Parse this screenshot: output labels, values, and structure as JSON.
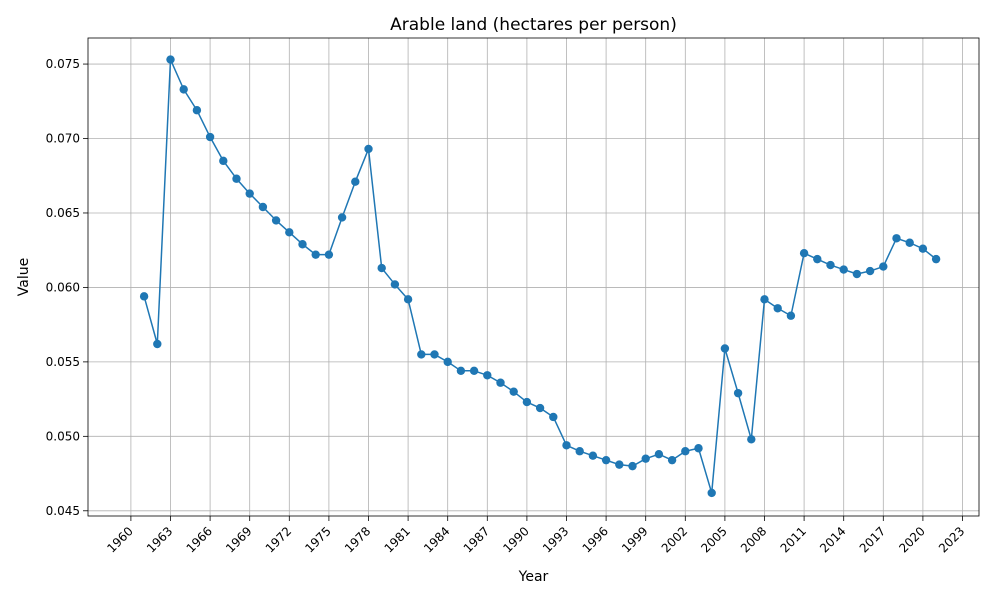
{
  "chart_data": {
    "type": "line",
    "title": "Arable land (hectares per person)",
    "xlabel": "Year",
    "ylabel": "Value",
    "xlim": [
      1956.75,
      2024.25
    ],
    "ylim": [
      0.04465,
      0.07675
    ],
    "grid": true,
    "x_ticks": [
      1960,
      1963,
      1966,
      1969,
      1972,
      1975,
      1978,
      1981,
      1984,
      1987,
      1990,
      1993,
      1996,
      1999,
      2002,
      2005,
      2008,
      2011,
      2014,
      2017,
      2020,
      2023
    ],
    "y_ticks": [
      0.045,
      0.05,
      0.055,
      0.06,
      0.065,
      0.07,
      0.075
    ],
    "y_tick_labels": [
      "0.045",
      "0.050",
      "0.055",
      "0.060",
      "0.065",
      "0.070",
      "0.075"
    ],
    "series": [
      {
        "color": "#1f77b4",
        "marker": "circle",
        "x": [
          1961,
          1962,
          1963,
          1964,
          1965,
          1966,
          1967,
          1968,
          1969,
          1970,
          1971,
          1972,
          1973,
          1974,
          1975,
          1976,
          1977,
          1978,
          1979,
          1980,
          1981,
          1982,
          1983,
          1984,
          1985,
          1986,
          1987,
          1988,
          1989,
          1990,
          1991,
          1992,
          1993,
          1994,
          1995,
          1996,
          1997,
          1998,
          1999,
          2000,
          2001,
          2002,
          2003,
          2004,
          2005,
          2006,
          2007,
          2008,
          2009,
          2010,
          2011,
          2012,
          2013,
          2014,
          2015,
          2016,
          2017,
          2018,
          2019,
          2020,
          2021
        ],
        "values": [
          0.0594,
          0.0562,
          0.0753,
          0.0733,
          0.0719,
          0.0701,
          0.0685,
          0.0673,
          0.0663,
          0.0654,
          0.0645,
          0.0637,
          0.0629,
          0.0622,
          0.0622,
          0.0647,
          0.0671,
          0.0693,
          0.0613,
          0.0602,
          0.0592,
          0.0555,
          0.0555,
          0.055,
          0.0544,
          0.0544,
          0.0541,
          0.0536,
          0.053,
          0.0523,
          0.0519,
          0.0513,
          0.0494,
          0.049,
          0.0487,
          0.0484,
          0.0481,
          0.048,
          0.0485,
          0.0488,
          0.0484,
          0.049,
          0.0492,
          0.0462,
          0.0559,
          0.0529,
          0.0498,
          0.0592,
          0.0586,
          0.0581,
          0.0623,
          0.0619,
          0.0615,
          0.0612,
          0.0609,
          0.0611,
          0.0614,
          0.0633,
          0.063,
          0.0626,
          0.0619
        ]
      }
    ]
  }
}
